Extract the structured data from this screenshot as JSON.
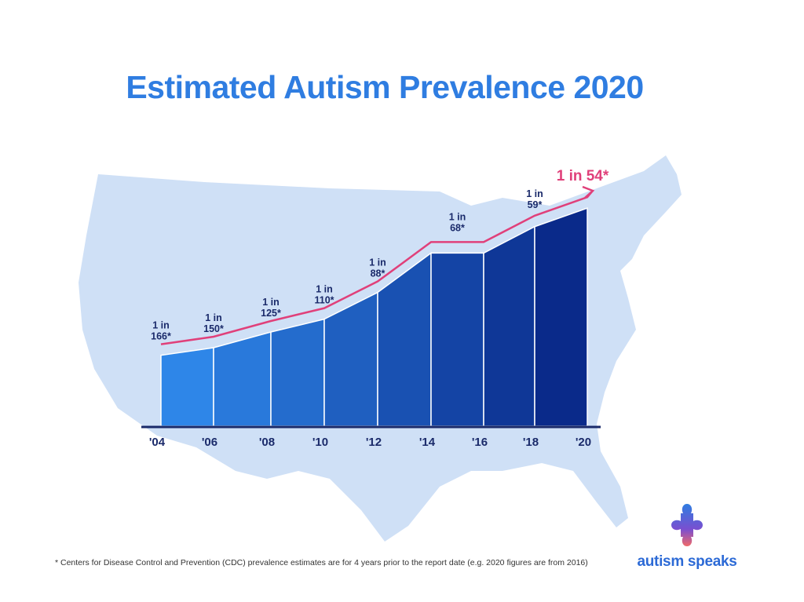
{
  "chart_data": {
    "type": "area",
    "title": "Estimated Autism Prevalence 2020",
    "categories": [
      "'04",
      "'06",
      "'08",
      "'10",
      "'12",
      "'14",
      "'16",
      "'18",
      "'20"
    ],
    "series": [
      {
        "values": [
          166,
          150,
          125,
          110,
          88,
          68,
          68,
          59,
          54
        ]
      }
    ],
    "value_meaning": "1 in N",
    "data_labels": [
      {
        "category": "'04",
        "line1": "1 in",
        "line2": "166*"
      },
      {
        "category": "'06",
        "line1": "1 in",
        "line2": "150*"
      },
      {
        "category": "'08",
        "line1": "1 in",
        "line2": "125*"
      },
      {
        "category": "'10",
        "line1": "1 in",
        "line2": "110*"
      },
      {
        "category": "'12",
        "line1": "1 in",
        "line2": "88*"
      },
      {
        "category": "'14",
        "line1": "1 in",
        "line2": "68*"
      },
      {
        "category": "'18",
        "line1": "1 in",
        "line2": "59*"
      }
    ],
    "highlight_label": "1 in 54*",
    "grid": false,
    "colors": {
      "bar_start": "#2e86e8",
      "bar_end": "#0a2a8a",
      "trend": "#e0407a",
      "map": "#cfe0f6",
      "axis": "#1a2a6a",
      "labels": "#1a2a6a"
    }
  },
  "footnote": "* Centers for Disease Control and Prevention (CDC) prevalence estimates are for 4 years prior to the report date (e.g. 2020 figures are from 2016)",
  "logo": {
    "text": "autism speaks",
    "icon": "puzzle-piece-icon"
  }
}
